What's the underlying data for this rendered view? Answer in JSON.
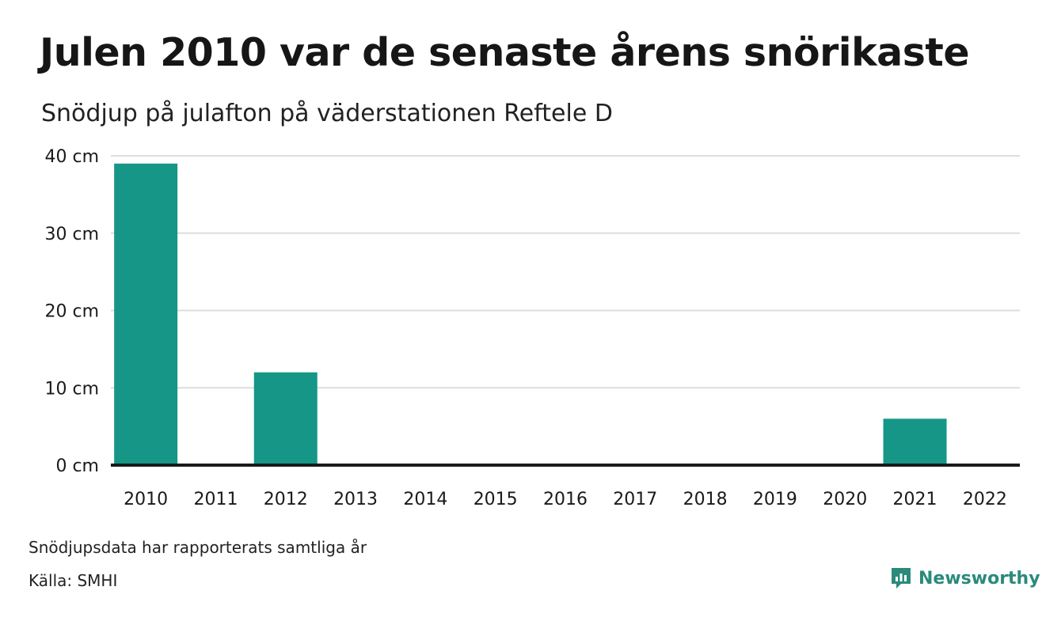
{
  "header": {
    "title": "Julen 2010 var de senaste årens snörikaste",
    "subtitle": "Snödjup på julafton på väderstationen Reftele D"
  },
  "footer": {
    "note": "Snödjupsdata har rapporterats samtliga år",
    "source": "Källa: SMHI",
    "brand": "Newsworthy"
  },
  "colors": {
    "bar": "#169686",
    "grid": "#dddddd",
    "axis": "#1a1a1a",
    "brand": "#2a8a7c"
  },
  "chart_data": {
    "type": "bar",
    "categories": [
      "2010",
      "2011",
      "2012",
      "2013",
      "2014",
      "2015",
      "2016",
      "2017",
      "2018",
      "2019",
      "2020",
      "2021",
      "2022"
    ],
    "values": [
      39,
      0,
      12,
      0,
      0,
      0,
      0,
      0,
      0,
      0,
      0,
      6,
      0
    ],
    "ylim": [
      0,
      40
    ],
    "yticks": [
      0,
      10,
      20,
      30,
      40
    ],
    "ytick_labels": [
      "0 cm",
      "10 cm",
      "20 cm",
      "30 cm",
      "40 cm"
    ],
    "grid": true
  }
}
